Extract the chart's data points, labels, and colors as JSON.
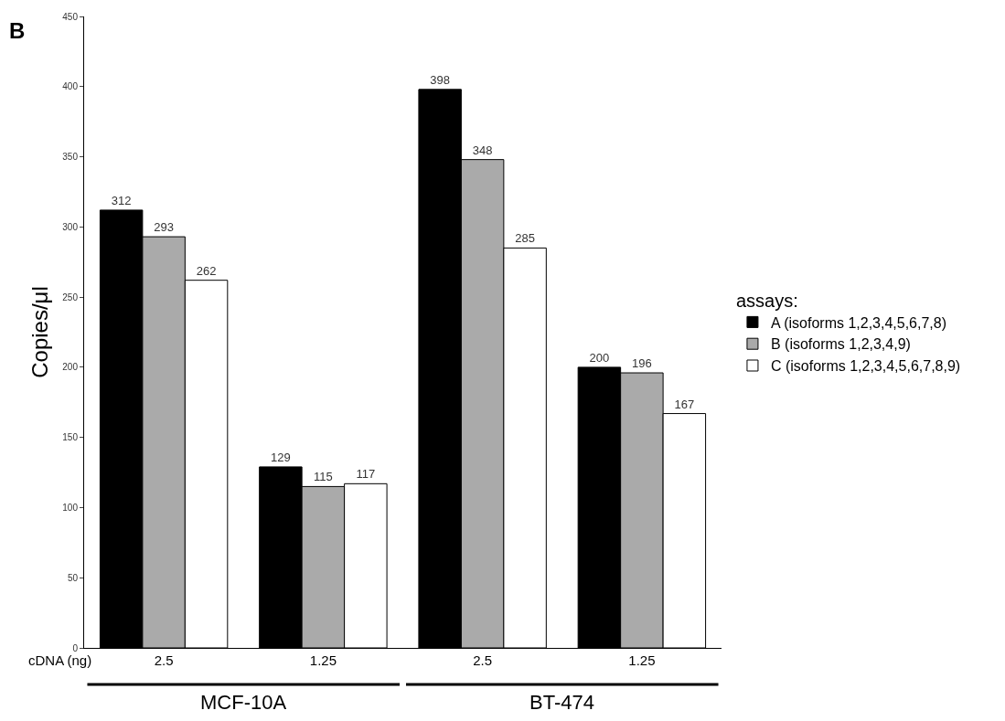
{
  "chart_data": {
    "type": "bar",
    "ylabel": "Copies/μl",
    "legend_title": "assays:",
    "categories": [
      "2.5",
      "1.25",
      "2.5",
      "1.25"
    ],
    "series": [
      {
        "name": "A (isoforms 1,2,3,4,5,6,7,8)",
        "color": "#000000",
        "values": [
          312,
          129,
          398,
          200
        ]
      },
      {
        "name": "B (isoforms 1,2,3,4,9)",
        "color": "#aaaaaa",
        "values": [
          293,
          115,
          348,
          196
        ]
      },
      {
        "name": "C (isoforms 1,2,3,4,5,6,7,8,9)",
        "color": "#ffffff",
        "values": [
          262,
          117,
          285,
          167
        ]
      }
    ],
    "ylim": [
      0,
      450
    ],
    "yticks": [
      0,
      50,
      100,
      150,
      200,
      250,
      300,
      350,
      400,
      450
    ],
    "data_labels": true,
    "legend": "right",
    "annotations": [
      "B",
      "cDNA (ng)",
      "MCF-10A",
      "BT-474"
    ]
  }
}
